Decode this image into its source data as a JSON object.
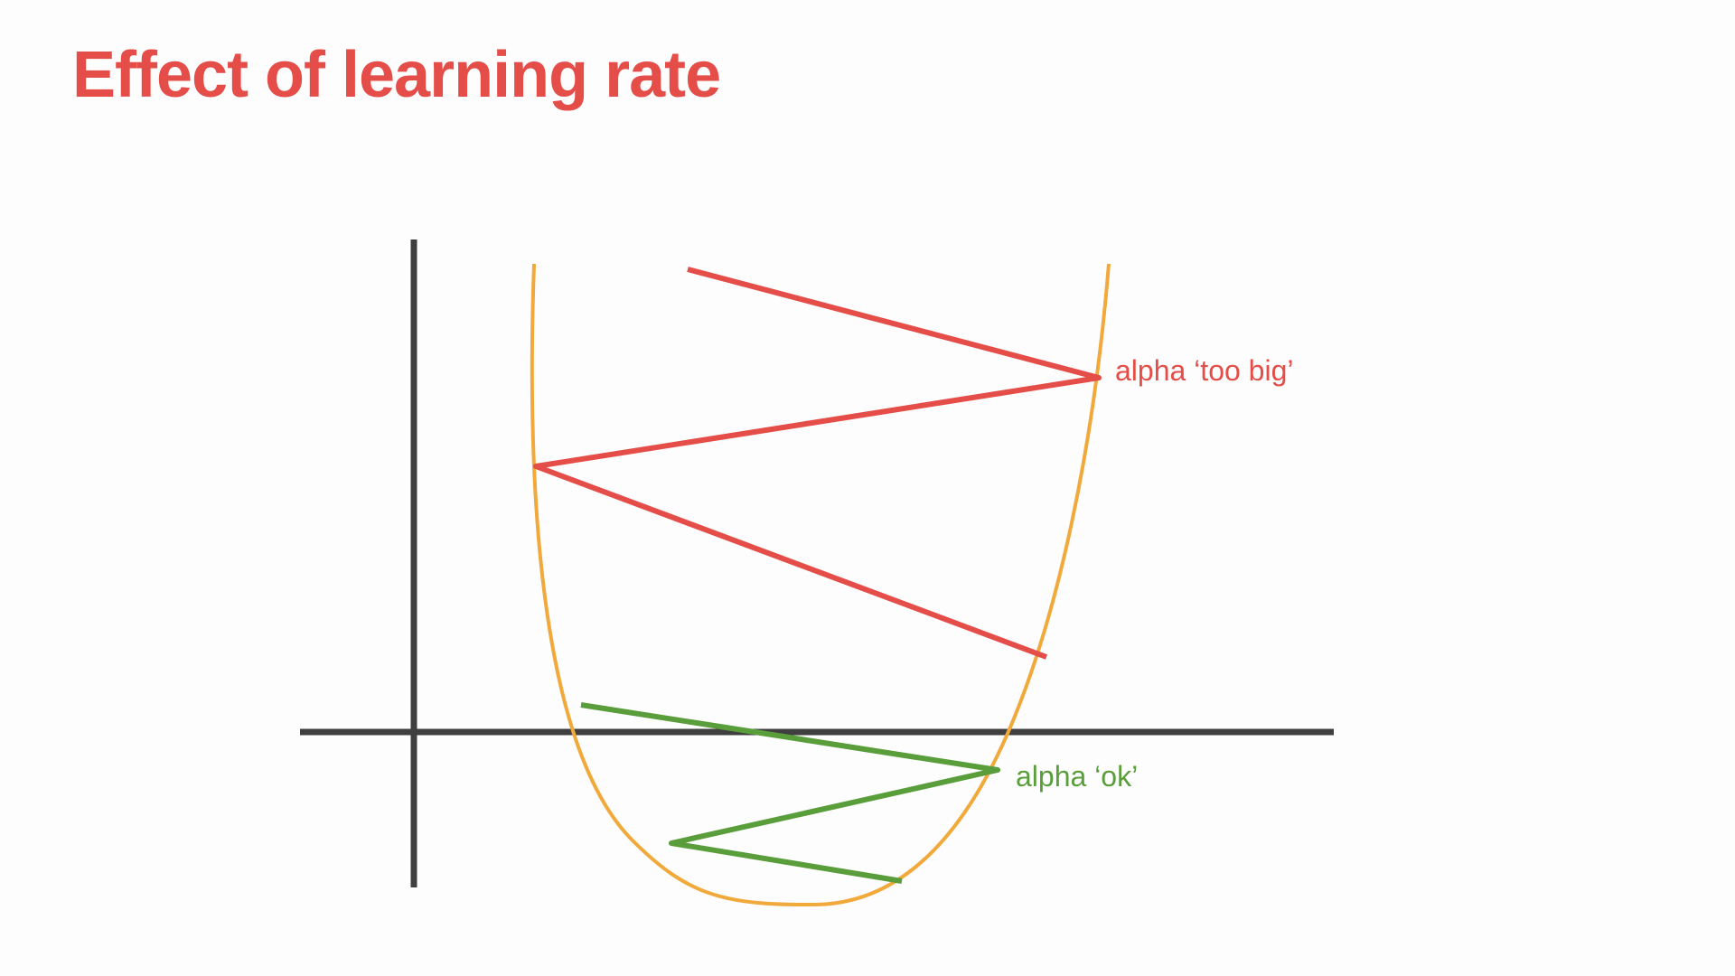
{
  "slide": {
    "title": "Effect of learning rate"
  },
  "annotations": {
    "too_big": "alpha ‘too big’",
    "ok": "alpha ‘ok’"
  },
  "colors": {
    "title": "#e44d48",
    "axes": "#3f3f3f",
    "curve": "#f0a93a",
    "too_big_path": "#e44d48",
    "ok_path": "#5a9e3c"
  }
}
